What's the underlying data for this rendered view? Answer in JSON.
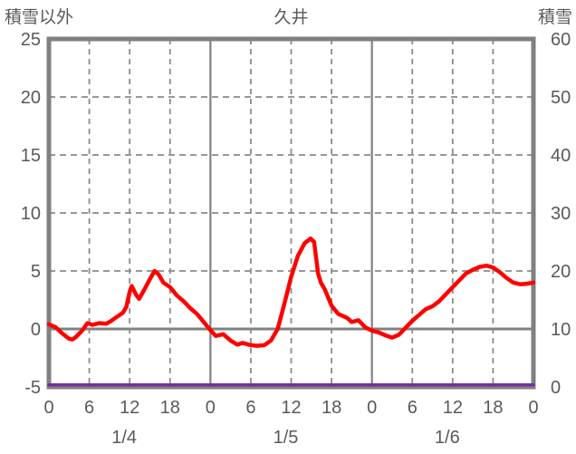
{
  "chart_data": {
    "type": "line",
    "title": "久井",
    "left_axis": {
      "label": "積雪以外",
      "min": -5,
      "max": 25,
      "ticks": [
        25,
        20,
        15,
        10,
        5,
        0,
        -5
      ]
    },
    "right_axis": {
      "label": "積雪",
      "min": 0,
      "max": 60,
      "ticks": [
        60,
        50,
        40,
        30,
        20,
        10,
        0
      ]
    },
    "x_axis": {
      "total_hours": 72,
      "tick_step_hours": 6,
      "hour_tick_labels": [
        "0",
        "6",
        "12",
        "18",
        "0",
        "6",
        "12",
        "18",
        "0",
        "6",
        "12",
        "18",
        "0"
      ],
      "date_labels": [
        "1/4",
        "1/5",
        "1/6"
      ]
    },
    "grid": {
      "solid_color": "#808080",
      "dashed_color": "#8a8a8a",
      "border_color": "#808080",
      "text_color": "#595959",
      "grid_on": true
    },
    "series": [
      {
        "name": "積雪以外",
        "axis": "left",
        "color": "#ff0000",
        "points": [
          [
            0,
            0.4
          ],
          [
            1,
            0.15
          ],
          [
            2,
            -0.4
          ],
          [
            3,
            -0.85
          ],
          [
            3.5,
            -0.9
          ],
          [
            4,
            -0.7
          ],
          [
            5,
            -0.1
          ],
          [
            5.7,
            0.5
          ],
          [
            6.5,
            0.35
          ],
          [
            7.5,
            0.5
          ],
          [
            8.5,
            0.45
          ],
          [
            9,
            0.6
          ],
          [
            10,
            1.0
          ],
          [
            11,
            1.4
          ],
          [
            11.5,
            1.9
          ],
          [
            12,
            3.2
          ],
          [
            12.3,
            3.7
          ],
          [
            13,
            2.9
          ],
          [
            13.4,
            2.6
          ],
          [
            14,
            3.2
          ],
          [
            15,
            4.3
          ],
          [
            15.7,
            5.0
          ],
          [
            16.3,
            4.7
          ],
          [
            17,
            4.0
          ],
          [
            18,
            3.6
          ],
          [
            19,
            2.9
          ],
          [
            20,
            2.4
          ],
          [
            21,
            1.8
          ],
          [
            22,
            1.3
          ],
          [
            23,
            0.6
          ],
          [
            24,
            -0.1
          ],
          [
            24.8,
            -0.6
          ],
          [
            25.9,
            -0.45
          ],
          [
            27,
            -1.0
          ],
          [
            28,
            -1.35
          ],
          [
            28.8,
            -1.2
          ],
          [
            30,
            -1.4
          ],
          [
            31,
            -1.45
          ],
          [
            32,
            -1.4
          ],
          [
            33,
            -1.0
          ],
          [
            34,
            0.0
          ],
          [
            35,
            2.2
          ],
          [
            36,
            4.5
          ],
          [
            37,
            6.3
          ],
          [
            38,
            7.4
          ],
          [
            38.9,
            7.8
          ],
          [
            39.4,
            7.5
          ],
          [
            40,
            4.8
          ],
          [
            40.4,
            4.0
          ],
          [
            41,
            3.4
          ],
          [
            42,
            2.0
          ],
          [
            43,
            1.3
          ],
          [
            44.3,
            0.95
          ],
          [
            45,
            0.6
          ],
          [
            46,
            0.75
          ],
          [
            47,
            0.15
          ],
          [
            48,
            -0.15
          ],
          [
            49,
            -0.3
          ],
          [
            50,
            -0.55
          ],
          [
            51,
            -0.75
          ],
          [
            52,
            -0.5
          ],
          [
            53,
            0.1
          ],
          [
            54,
            0.7
          ],
          [
            55,
            1.2
          ],
          [
            56,
            1.7
          ],
          [
            57,
            1.95
          ],
          [
            58,
            2.4
          ],
          [
            59,
            3.0
          ],
          [
            60,
            3.6
          ],
          [
            61,
            4.2
          ],
          [
            62,
            4.8
          ],
          [
            63,
            5.1
          ],
          [
            64,
            5.35
          ],
          [
            65,
            5.45
          ],
          [
            66,
            5.3
          ],
          [
            67,
            4.9
          ],
          [
            68,
            4.4
          ],
          [
            69,
            4.0
          ],
          [
            70,
            3.85
          ],
          [
            71,
            3.9
          ],
          [
            72,
            4.0
          ]
        ]
      },
      {
        "name": "積雪",
        "axis": "right",
        "color": "#7030a0",
        "points": [
          [
            0,
            0
          ],
          [
            72,
            0
          ]
        ]
      }
    ]
  }
}
